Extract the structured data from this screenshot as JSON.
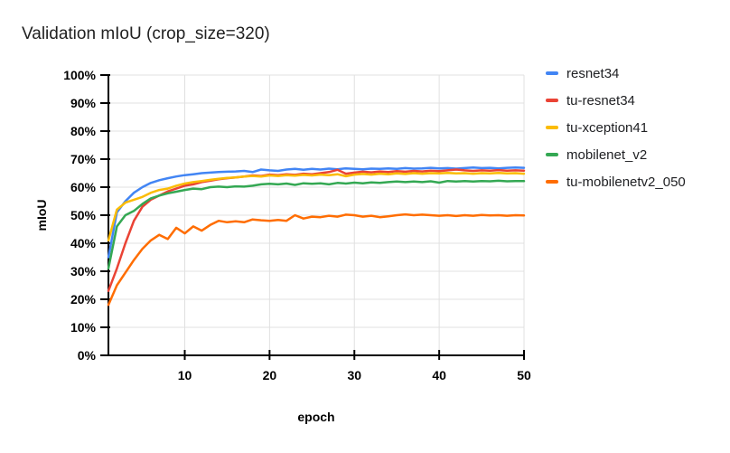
{
  "title": "Validation mIoU (crop_size=320)",
  "chart_data": {
    "type": "line",
    "title": "Validation mIoU (crop_size=320)",
    "xlabel": "epoch",
    "ylabel": "mIoU",
    "xlim": [
      1,
      50
    ],
    "ylim": [
      0,
      100
    ],
    "x_ticks": [
      10,
      20,
      30,
      40,
      50
    ],
    "y_ticks": [
      0,
      10,
      20,
      30,
      40,
      50,
      60,
      70,
      80,
      90,
      100
    ],
    "y_tick_format": "%",
    "grid": true,
    "legend_position": "right",
    "grid_color": "#e0e0e0",
    "axis_color": "#000000",
    "epochs": [
      1,
      2,
      3,
      4,
      5,
      6,
      7,
      8,
      9,
      10,
      11,
      12,
      13,
      14,
      15,
      16,
      17,
      18,
      19,
      20,
      21,
      22,
      23,
      24,
      25,
      26,
      27,
      28,
      29,
      30,
      31,
      32,
      33,
      34,
      35,
      36,
      37,
      38,
      39,
      40,
      41,
      42,
      43,
      44,
      45,
      46,
      47,
      48,
      49,
      50
    ],
    "series": [
      {
        "name": "resnet34",
        "color": "#4285F4",
        "values": [
          35.0,
          51.0,
          55.0,
          58.0,
          60.0,
          61.5,
          62.5,
          63.2,
          63.8,
          64.3,
          64.6,
          65.0,
          65.2,
          65.4,
          65.5,
          65.6,
          65.8,
          65.4,
          66.3,
          66.0,
          65.8,
          66.3,
          66.5,
          66.2,
          66.5,
          66.3,
          66.6,
          66.4,
          66.7,
          66.5,
          66.4,
          66.6,
          66.5,
          66.7,
          66.5,
          66.8,
          66.6,
          66.7,
          66.9,
          66.7,
          66.8,
          66.6,
          66.8,
          67.0,
          66.8,
          66.9,
          66.7,
          66.9,
          67.0,
          66.9
        ]
      },
      {
        "name": "tu-resnet34",
        "color": "#EA4335",
        "values": [
          23.0,
          31.0,
          40.0,
          48.0,
          53.0,
          55.5,
          57.0,
          58.5,
          59.5,
          60.5,
          61.0,
          61.8,
          62.3,
          62.8,
          63.2,
          63.5,
          63.8,
          64.2,
          64.0,
          64.5,
          64.3,
          64.6,
          64.4,
          64.8,
          64.6,
          65.0,
          65.4,
          66.2,
          64.8,
          65.2,
          65.5,
          65.3,
          65.6,
          65.4,
          65.7,
          65.5,
          65.8,
          65.6,
          65.9,
          65.7,
          66.0,
          66.3,
          66.0,
          65.8,
          66.0,
          65.9,
          66.1,
          65.9,
          66.0,
          65.9
        ]
      },
      {
        "name": "tu-xception41",
        "color": "#FBBC04",
        "values": [
          41.0,
          52.0,
          54.5,
          55.5,
          56.5,
          58.0,
          59.0,
          59.5,
          60.5,
          61.3,
          61.8,
          62.2,
          62.6,
          63.0,
          63.3,
          63.5,
          63.8,
          64.0,
          63.8,
          64.2,
          64.0,
          64.3,
          64.1,
          64.4,
          64.2,
          64.5,
          64.3,
          64.6,
          63.9,
          64.5,
          64.7,
          64.5,
          64.8,
          64.6,
          64.9,
          64.7,
          65.0,
          64.8,
          65.0,
          64.9,
          65.1,
          64.9,
          65.0,
          64.8,
          65.0,
          64.9,
          65.1,
          64.9,
          65.0,
          64.8
        ]
      },
      {
        "name": "mobilenet_v2",
        "color": "#34A853",
        "values": [
          31.0,
          46.0,
          50.0,
          51.5,
          54.0,
          56.0,
          57.0,
          57.8,
          58.4,
          59.0,
          59.5,
          59.3,
          60.0,
          60.2,
          60.0,
          60.3,
          60.2,
          60.5,
          61.0,
          61.2,
          61.0,
          61.3,
          60.8,
          61.4,
          61.2,
          61.4,
          61.0,
          61.5,
          61.3,
          61.6,
          61.4,
          61.7,
          61.5,
          61.8,
          62.0,
          61.8,
          62.0,
          61.8,
          62.1,
          61.6,
          62.2,
          62.0,
          62.2,
          62.0,
          62.2,
          62.1,
          62.3,
          62.1,
          62.2,
          62.2
        ]
      },
      {
        "name": "tu-mobilenetv2_050",
        "color": "#FF6D01",
        "values": [
          18.0,
          25.0,
          29.5,
          34.0,
          38.0,
          41.0,
          43.0,
          41.5,
          45.5,
          43.5,
          46.0,
          44.5,
          46.5,
          48.0,
          47.5,
          47.8,
          47.5,
          48.5,
          48.2,
          48.0,
          48.3,
          48.0,
          50.0,
          48.8,
          49.5,
          49.3,
          49.8,
          49.5,
          50.2,
          50.0,
          49.5,
          49.8,
          49.3,
          49.6,
          50.0,
          50.3,
          50.0,
          50.2,
          50.0,
          49.8,
          50.0,
          49.7,
          50.0,
          49.8,
          50.1,
          49.9,
          50.0,
          49.8,
          50.0,
          49.9
        ]
      }
    ]
  }
}
